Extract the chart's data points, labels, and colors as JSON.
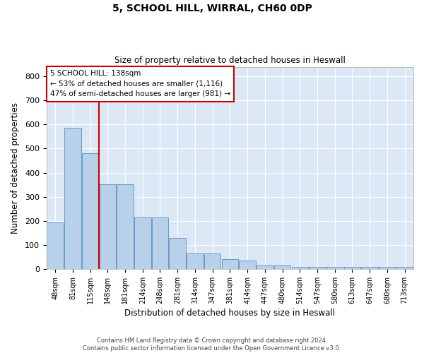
{
  "title_line1": "5, SCHOOL HILL, WIRRAL, CH60 0DP",
  "title_line2": "Size of property relative to detached houses in Heswall",
  "xlabel": "Distribution of detached houses by size in Heswall",
  "ylabel": "Number of detached properties",
  "categories": [
    "48sqm",
    "81sqm",
    "115sqm",
    "148sqm",
    "181sqm",
    "214sqm",
    "248sqm",
    "281sqm",
    "314sqm",
    "347sqm",
    "381sqm",
    "414sqm",
    "447sqm",
    "480sqm",
    "514sqm",
    "547sqm",
    "580sqm",
    "613sqm",
    "647sqm",
    "680sqm",
    "713sqm"
  ],
  "values": [
    192,
    585,
    480,
    352,
    352,
    215,
    215,
    130,
    63,
    63,
    40,
    35,
    16,
    16,
    10,
    10,
    10,
    10,
    10,
    10,
    8
  ],
  "bar_color": "#b8d0e8",
  "bar_edge_color": "#6699cc",
  "vline_color": "#cc0000",
  "vline_x": 2.5,
  "annotation_text": "5 SCHOOL HILL: 138sqm\n← 53% of detached houses are smaller (1,116)\n47% of semi-detached houses are larger (981) →",
  "annotation_box_color": "#ffffff",
  "annotation_box_edge": "#cc0000",
  "ylim": [
    0,
    840
  ],
  "yticks": [
    0,
    100,
    200,
    300,
    400,
    500,
    600,
    700,
    800
  ],
  "plot_bg_color": "#dce8f5",
  "grid_color": "#ffffff",
  "fig_bg_color": "#ffffff",
  "footer_line1": "Contains HM Land Registry data © Crown copyright and database right 2024.",
  "footer_line2": "Contains public sector information licensed under the Open Government Licence v3.0."
}
